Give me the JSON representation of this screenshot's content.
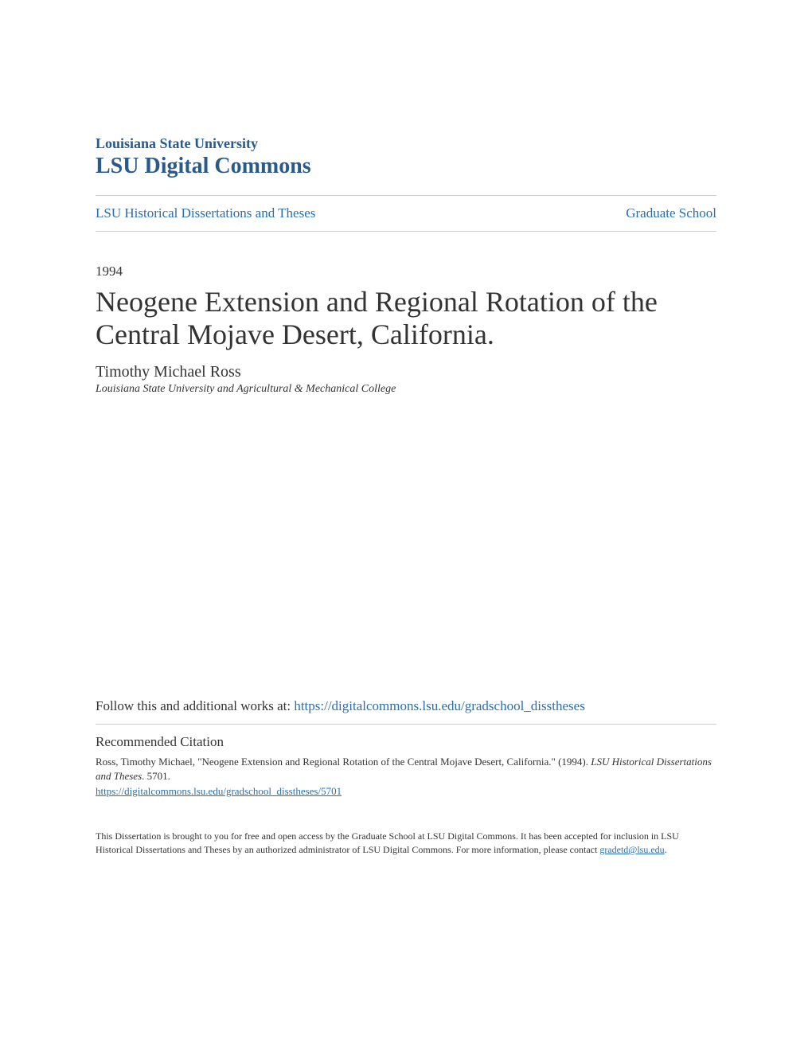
{
  "header": {
    "institution": "Louisiana State University",
    "commons": "LSU Digital Commons"
  },
  "breadcrumb": {
    "left": "LSU Historical Dissertations and Theses",
    "right": "Graduate School"
  },
  "meta": {
    "year": "1994",
    "title": "Neogene Extension and Regional Rotation of the Central Mojave Desert, California.",
    "author": "Timothy Michael Ross",
    "affiliation": "Louisiana State University and Agricultural & Mechanical College"
  },
  "follow": {
    "label": "Follow this and additional works at: ",
    "url": "https://digitalcommons.lsu.edu/gradschool_disstheses"
  },
  "citation": {
    "heading": "Recommended Citation",
    "text_prefix": "Ross, Timothy Michael, \"Neogene Extension and Regional Rotation of the Central Mojave Desert, California.\" (1994). ",
    "text_italic": "LSU Historical Dissertations and Theses",
    "text_suffix": ". 5701.",
    "url": "https://digitalcommons.lsu.edu/gradschool_disstheses/5701"
  },
  "footer": {
    "text": "This Dissertation is brought to you for free and open access by the Graduate School at LSU Digital Commons. It has been accepted for inclusion in LSU Historical Dissertations and Theses by an authorized administrator of LSU Digital Commons. For more information, please contact ",
    "email": "gradetd@lsu.edu",
    "period": "."
  },
  "colors": {
    "link": "#2a6fa8",
    "header": "#2a5a8a",
    "text": "#333333",
    "divider": "#cccccc",
    "background": "#ffffff"
  },
  "typography": {
    "font_family": "Georgia, Times New Roman, serif",
    "title_fontsize": 36,
    "header_commons_fontsize": 28,
    "header_institution_fontsize": 18,
    "body_fontsize": 17,
    "author_fontsize": 20,
    "affiliation_fontsize": 14,
    "citation_fontsize": 13,
    "footer_fontsize": 12
  }
}
